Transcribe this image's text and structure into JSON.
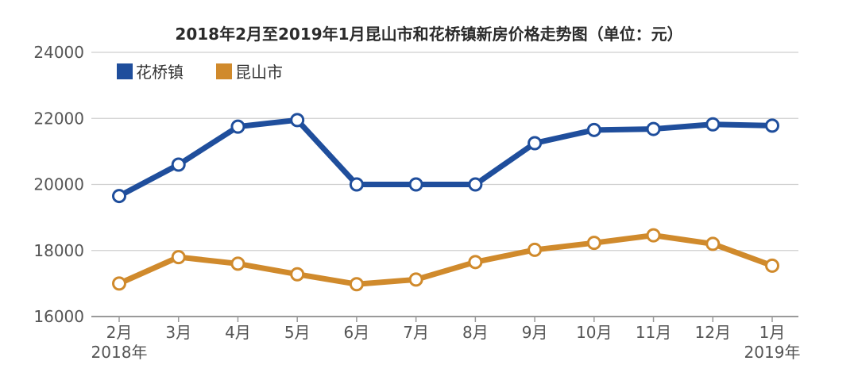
{
  "chart_data": {
    "type": "line",
    "title": "2018年2月至2019年1月昆山市和花桥镇新房价格走势图（单位：元）",
    "categories": [
      "2月",
      "3月",
      "4月",
      "5月",
      "6月",
      "7月",
      "8月",
      "9月",
      "10月",
      "11月",
      "12月",
      "1月"
    ],
    "year_labels": [
      {
        "category_index": 0,
        "label": "2018年"
      },
      {
        "category_index": 11,
        "label": "2019年"
      }
    ],
    "yticks": [
      "16000",
      "18000",
      "20000",
      "22000",
      "24000"
    ],
    "ylim": [
      16000,
      24000
    ],
    "grid": true,
    "legend_position": "top-left",
    "series": [
      {
        "name": "花桥镇",
        "color": "#1f4e9c",
        "values": [
          19650,
          20600,
          21750,
          21950,
          20000,
          20000,
          20000,
          21250,
          21650,
          21680,
          21820,
          21780
        ]
      },
      {
        "name": "昆山市",
        "color": "#d08a2c",
        "values": [
          17000,
          17800,
          17600,
          17280,
          16980,
          17120,
          17650,
          18020,
          18230,
          18460,
          18200,
          17540
        ]
      }
    ]
  }
}
